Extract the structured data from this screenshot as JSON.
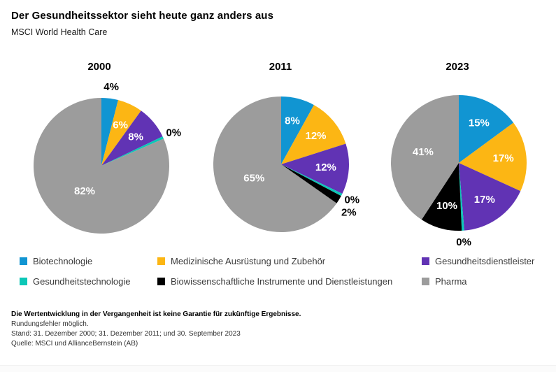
{
  "header": {
    "title": "Der Gesundheitssektor sieht heute ganz anders aus",
    "subtitle": "MSCI World Health Care"
  },
  "legend": {
    "items": [
      {
        "label": "Biotechnologie",
        "color": "#1195d2"
      },
      {
        "label": "Medizinische Ausrüstung und Zubehör",
        "color": "#fcb614"
      },
      {
        "label": "Gesundheitsdienstleister",
        "color": "#6133b4"
      },
      {
        "label": "Gesundheitstechnologie",
        "color": "#0cc7b7"
      },
      {
        "label": "Biowissenschaftliche Instrumente und Dienstleistungen",
        "color": "#000000"
      },
      {
        "label": "Pharma",
        "color": "#9c9c9c"
      }
    ]
  },
  "chart_data": {
    "type": "pie",
    "title": "Der Gesundheitssektor sieht heute ganz anders aus",
    "subtitle": "MSCI World Health Care",
    "legend_position": "bottom",
    "units": "percent",
    "charts": [
      {
        "title": "2000",
        "slices": [
          {
            "category": "Biotechnologie",
            "value": 4,
            "label": "4%"
          },
          {
            "category": "Medizinische Ausrüstung und Zubehör",
            "value": 6,
            "label": "6%"
          },
          {
            "category": "Gesundheitsdienstleister",
            "value": 8,
            "label": "8%"
          },
          {
            "category": "Gesundheitstechnologie",
            "value": 0,
            "label": "0%"
          },
          {
            "category": "Pharma",
            "value": 82,
            "label": "82%"
          }
        ]
      },
      {
        "title": "2011",
        "slices": [
          {
            "category": "Biotechnologie",
            "value": 8,
            "label": "8%"
          },
          {
            "category": "Medizinische Ausrüstung und Zubehör",
            "value": 12,
            "label": "12%"
          },
          {
            "category": "Gesundheitsdienstleister",
            "value": 12,
            "label": "12%"
          },
          {
            "category": "Gesundheitstechnologie",
            "value": 0,
            "label": "0%"
          },
          {
            "category": "Biowissenschaftliche Instrumente und Dienstleistungen",
            "value": 2,
            "label": "2%"
          },
          {
            "category": "Pharma",
            "value": 65,
            "label": "65%"
          }
        ]
      },
      {
        "title": "2023",
        "slices": [
          {
            "category": "Biotechnologie",
            "value": 15,
            "label": "15%"
          },
          {
            "category": "Medizinische Ausrüstung und Zubehör",
            "value": 17,
            "label": "17%"
          },
          {
            "category": "Gesundheitsdienstleister",
            "value": 17,
            "label": "17%"
          },
          {
            "category": "Gesundheitstechnologie",
            "value": 0,
            "label": "0%"
          },
          {
            "category": "Biowissenschaftliche Instrumente und Dienstleistungen",
            "value": 10,
            "label": "10%"
          },
          {
            "category": "Pharma",
            "value": 41,
            "label": "41%"
          }
        ]
      }
    ]
  },
  "footnotes": {
    "disclaimer": "Die Wertentwicklung in der Vergangenheit ist keine Garantie für zukünftige Ergebnisse.",
    "rounding": "Rundungsfehler möglich.",
    "as_of": "Stand: 31. Dezember 2000; 31. Dezember 2011; und 30. September 2023",
    "source": "Quelle: MSCI und AllianceBernstein (AB)"
  }
}
